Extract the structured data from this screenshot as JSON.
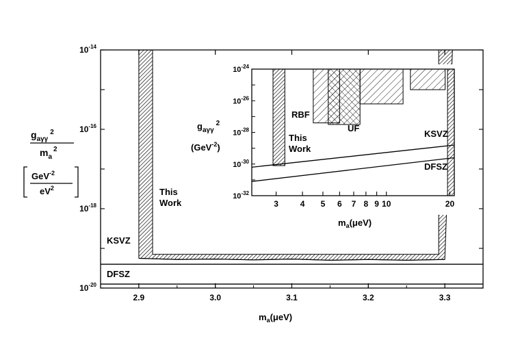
{
  "chart_data": [
    {
      "type": "area",
      "title": "",
      "xlabel": "m",
      "xlabel_sub": "a",
      "xlabel_unit": "(μeV)",
      "ylabel": {
        "g_base": "g",
        "g_sub": "aγγ",
        "g_sup": "2",
        "m_base": "m",
        "m_sub": "a",
        "m_sup": "2",
        "unit_num": "GeV",
        "unit_num_sup": "-2",
        "unit_den": "eV",
        "unit_den_sup": "2"
      },
      "xlim": [
        2.85,
        3.35
      ],
      "ylim_log10": [
        -20,
        -14
      ],
      "y_scale": "log",
      "x_ticks": [
        "2.9",
        "3.0",
        "3.1",
        "3.2",
        "3.3"
      ],
      "y_tick_labels": [
        {
          "base": "10",
          "exp": "-14"
        },
        {
          "base": "10",
          "exp": "-16"
        },
        {
          "base": "10",
          "exp": "-18"
        },
        {
          "base": "10",
          "exp": "-20"
        }
      ],
      "excluded_region": {
        "label_line1": "This",
        "label_line2": "Work",
        "x_range": [
          2.9,
          3.31
        ],
        "ceiling_log10": -14,
        "limit_floor": {
          "x": [
            2.9,
            2.95,
            3.0,
            3.05,
            3.1,
            3.15,
            3.2,
            3.25,
            3.3
          ],
          "y_log10": [
            -19.25,
            -19.28,
            -19.27,
            -19.29,
            -19.27,
            -19.3,
            -19.28,
            -19.3,
            -19.28
          ]
        }
      },
      "reference_lines": [
        {
          "name": "KSVZ",
          "y_log10": -19.4
        },
        {
          "name": "DFSZ",
          "y_log10": -19.9
        }
      ]
    },
    {
      "type": "area",
      "title": "",
      "xlabel": "m",
      "xlabel_sub": "a",
      "xlabel_unit": "(μeV)",
      "ylabel": {
        "g_base": "g",
        "g_sub": "aγγ",
        "g_sup": "2",
        "unit": "(GeV",
        "unit_sup": "-2",
        "unit_close": ")"
      },
      "x_scale": "log",
      "y_scale": "log",
      "xlim": [
        2.3,
        21
      ],
      "ylim_log10": [
        -32,
        -24
      ],
      "x_ticks": [
        "3",
        "4",
        "5",
        "6",
        "7",
        "8",
        "9",
        "10",
        "20"
      ],
      "y_tick_labels": [
        {
          "base": "10",
          "exp": "-24"
        },
        {
          "base": "10",
          "exp": "-26"
        },
        {
          "base": "10",
          "exp": "-28"
        },
        {
          "base": "10",
          "exp": "-30"
        },
        {
          "base": "10",
          "exp": "-32"
        }
      ],
      "regions": [
        {
          "name": "This Work",
          "label_line1": "This",
          "label_line2": "Work",
          "x_range": [
            2.9,
            3.3
          ],
          "floor_log10": -30.1
        },
        {
          "name": "RBF",
          "label": "RBF",
          "x_range": [
            4.5,
            6.0
          ],
          "floor_log10": -27.4
        },
        {
          "name": "UF",
          "label": "UF",
          "x_range": [
            5.3,
            7.5
          ],
          "floor_log10": -27.5
        },
        {
          "name": "",
          "x_range": [
            7.5,
            12
          ],
          "floor_log10": -26.2
        },
        {
          "name": "",
          "x_range": [
            13,
            19
          ],
          "floor_log10": -25.3
        }
      ],
      "reference_lines": [
        {
          "name": "KSVZ",
          "x": [
            2.3,
            21
          ],
          "y_log10": [
            -30.2,
            -28.8
          ]
        },
        {
          "name": "DFSZ",
          "x": [
            2.3,
            21
          ],
          "y_log10": [
            -31.1,
            -29.6
          ]
        }
      ],
      "right_band": {
        "x_range": [
          19.5,
          21
        ]
      }
    }
  ]
}
